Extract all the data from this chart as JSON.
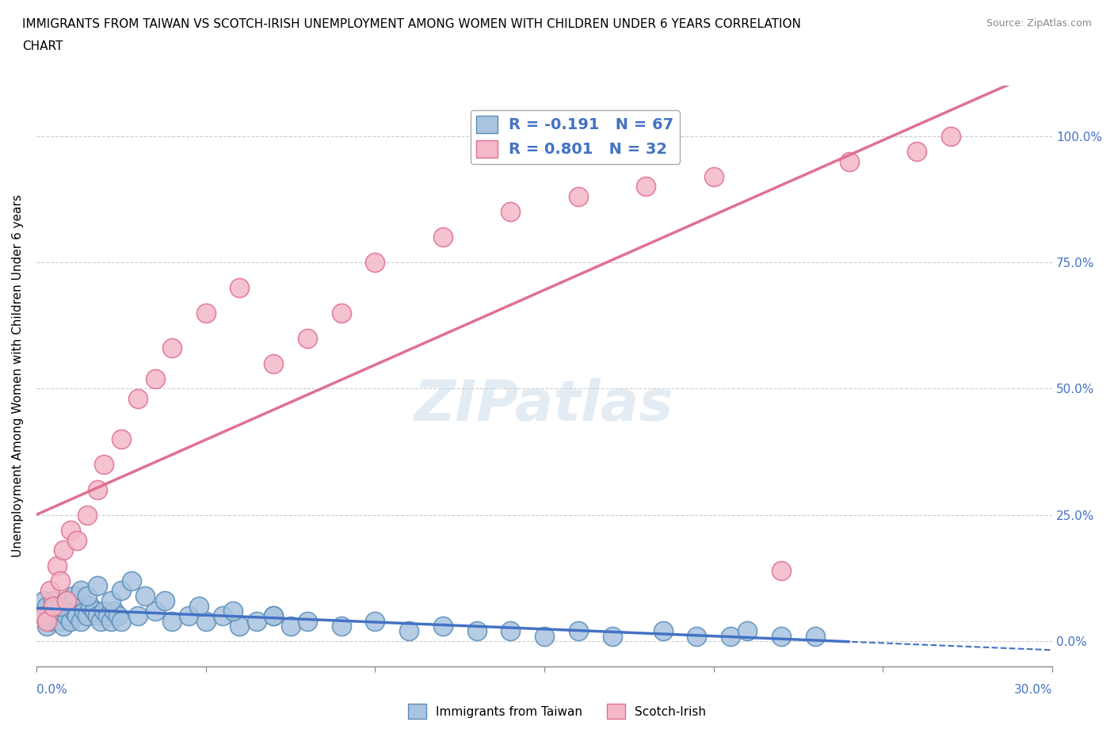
{
  "title_line1": "IMMIGRANTS FROM TAIWAN VS SCOTCH-IRISH UNEMPLOYMENT AMONG WOMEN WITH CHILDREN UNDER 6 YEARS CORRELATION",
  "title_line2": "CHART",
  "source": "Source: ZipAtlas.com",
  "ylabel": "Unemployment Among Women with Children Under 6 years",
  "yticks": [
    0.0,
    0.25,
    0.5,
    0.75,
    1.0
  ],
  "ytick_labels": [
    "0.0%",
    "25.0%",
    "50.0%",
    "75.0%",
    "100.0%"
  ],
  "xmin": 0.0,
  "xmax": 0.3,
  "ymin": -0.05,
  "ymax": 1.1,
  "taiwan_color": "#a8c4e0",
  "taiwan_edge_color": "#5b8db8",
  "scotch_color": "#f4b8c8",
  "scotch_edge_color": "#e07090",
  "taiwan_R": -0.191,
  "taiwan_N": 67,
  "scotch_R": 0.801,
  "scotch_N": 32,
  "taiwan_line_color": "#4472c4",
  "scotch_line_color": "#e07090",
  "watermark": "ZIPatlas",
  "watermark_color": "#c8d8e8",
  "legend_text_color": "#4472c4",
  "taiwan_scatter_x": [
    0.002,
    0.003,
    0.004,
    0.005,
    0.006,
    0.007,
    0.008,
    0.009,
    0.01,
    0.011,
    0.012,
    0.013,
    0.014,
    0.015,
    0.016,
    0.017,
    0.018,
    0.019,
    0.02,
    0.021,
    0.022,
    0.023,
    0.024,
    0.025,
    0.03,
    0.035,
    0.04,
    0.045,
    0.05,
    0.055,
    0.06,
    0.065,
    0.07,
    0.075,
    0.08,
    0.09,
    0.1,
    0.11,
    0.12,
    0.13,
    0.14,
    0.15,
    0.16,
    0.17,
    0.185,
    0.195,
    0.205,
    0.21,
    0.22,
    0.23,
    0.002,
    0.003,
    0.005,
    0.007,
    0.009,
    0.011,
    0.013,
    0.015,
    0.018,
    0.022,
    0.025,
    0.028,
    0.032,
    0.038,
    0.048,
    0.058,
    0.07
  ],
  "taiwan_scatter_y": [
    0.05,
    0.03,
    0.04,
    0.06,
    0.05,
    0.04,
    0.03,
    0.05,
    0.04,
    0.06,
    0.05,
    0.04,
    0.06,
    0.05,
    0.07,
    0.06,
    0.05,
    0.04,
    0.06,
    0.05,
    0.04,
    0.06,
    0.05,
    0.04,
    0.05,
    0.06,
    0.04,
    0.05,
    0.04,
    0.05,
    0.03,
    0.04,
    0.05,
    0.03,
    0.04,
    0.03,
    0.04,
    0.02,
    0.03,
    0.02,
    0.02,
    0.01,
    0.02,
    0.01,
    0.02,
    0.01,
    0.01,
    0.02,
    0.01,
    0.01,
    0.08,
    0.07,
    0.08,
    0.07,
    0.08,
    0.09,
    0.1,
    0.09,
    0.11,
    0.08,
    0.1,
    0.12,
    0.09,
    0.08,
    0.07,
    0.06,
    0.05
  ],
  "scotch_scatter_x": [
    0.002,
    0.003,
    0.004,
    0.005,
    0.006,
    0.007,
    0.008,
    0.009,
    0.01,
    0.012,
    0.015,
    0.018,
    0.02,
    0.025,
    0.03,
    0.035,
    0.04,
    0.05,
    0.06,
    0.07,
    0.08,
    0.09,
    0.1,
    0.12,
    0.14,
    0.16,
    0.18,
    0.2,
    0.22,
    0.24,
    0.26,
    0.27
  ],
  "scotch_scatter_y": [
    0.05,
    0.04,
    0.1,
    0.07,
    0.15,
    0.12,
    0.18,
    0.08,
    0.22,
    0.2,
    0.25,
    0.3,
    0.35,
    0.4,
    0.48,
    0.52,
    0.58,
    0.65,
    0.7,
    0.55,
    0.6,
    0.65,
    0.75,
    0.8,
    0.85,
    0.88,
    0.9,
    0.92,
    0.14,
    0.95,
    0.97,
    1.0
  ]
}
